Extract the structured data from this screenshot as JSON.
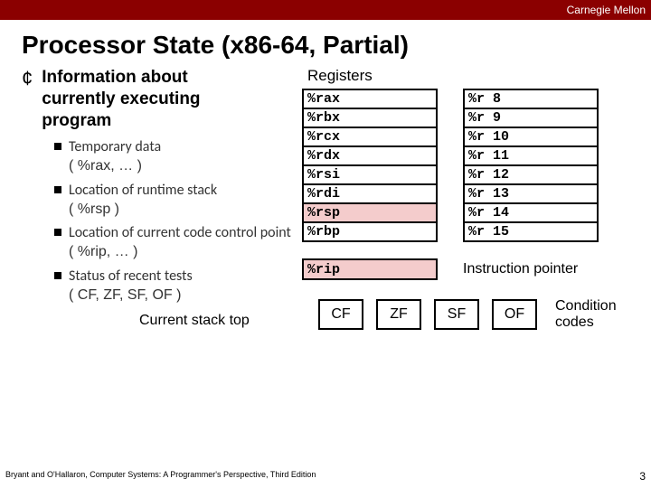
{
  "topbar": {
    "label": "Carnegie Mellon"
  },
  "title": "Processor State (x86-64, Partial)",
  "left": {
    "heading_l1": "Information about",
    "heading_l2": "currently executing",
    "heading_l3": "program",
    "items": [
      {
        "main": "Temporary data",
        "note": "( %rax, … )"
      },
      {
        "main": "Location of runtime stack",
        "note": "( %rsp )"
      },
      {
        "main": "Location of current code control point",
        "note": "( %rip, … )"
      },
      {
        "main": "Status of recent tests",
        "note": "( CF, ZF, SF, OF )"
      }
    ],
    "cst": "Current stack top"
  },
  "right": {
    "reg_title": "Registers",
    "regs": [
      {
        "a": "%rax",
        "b": "%r 8",
        "hl": false
      },
      {
        "a": "%rbx",
        "b": "%r 9",
        "hl": false
      },
      {
        "a": "%rcx",
        "b": "%r 10",
        "hl": false
      },
      {
        "a": "%rdx",
        "b": "%r 11",
        "hl": false
      },
      {
        "a": "%rsi",
        "b": "%r 12",
        "hl": false
      },
      {
        "a": "%rdi",
        "b": "%r 13",
        "hl": false
      },
      {
        "a": "%rsp",
        "b": "%r 14",
        "hl": true
      },
      {
        "a": "%rbp",
        "b": "%r 15",
        "hl": false
      }
    ],
    "rip": "%rip",
    "rip_label": "Instruction pointer",
    "cc": [
      "CF",
      "ZF",
      "SF",
      "OF"
    ],
    "cc_label_l1": "Condition",
    "cc_label_l2": "codes"
  },
  "footer": {
    "credit": "Bryant and O'Hallaron, Computer Systems: A Programmer's Perspective, Third Edition",
    "page": "3"
  },
  "colors": {
    "topbar_bg": "#8b0000",
    "highlight_bg": "#f4cccc",
    "border": "#000000",
    "text": "#000000",
    "subtext": "#333333",
    "page_bg": "#ffffff"
  }
}
